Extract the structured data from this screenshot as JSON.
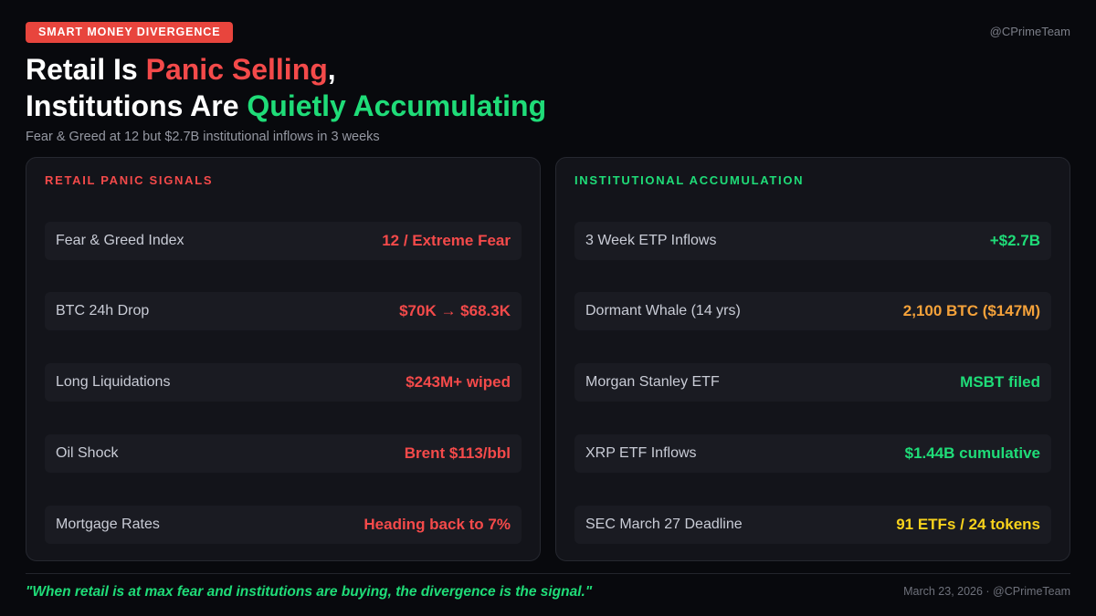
{
  "badge": "SMART MONEY DIVERGENCE",
  "handle": "@CPrimeTeam",
  "title": {
    "line1_pre": "Retail Is ",
    "line1_highlight": "Panic Selling",
    "line1_post": ",",
    "line2_pre": "Institutions Are ",
    "line2_highlight": "Quietly Accumulating"
  },
  "subtitle": "Fear & Greed at 12 but $2.7B institutional inflows in 3 weeks",
  "retail": {
    "title": "RETAIL PANIC SIGNALS",
    "accent": "#f44a4a",
    "rows": [
      {
        "label": "Fear & Greed Index",
        "value": "12 / Extreme Fear",
        "color": "#f44a4a"
      },
      {
        "label": "BTC 24h Drop",
        "value": "$70K → $68.3K",
        "color": "#f44a4a"
      },
      {
        "label": "Long Liquidations",
        "value": "$243M+ wiped",
        "color": "#f44a4a"
      },
      {
        "label": "Oil Shock",
        "value": "Brent $113/bbl",
        "color": "#f44a4a"
      },
      {
        "label": "Mortgage Rates",
        "value": "Heading back to 7%",
        "color": "#f44a4a"
      }
    ]
  },
  "institutional": {
    "title": "INSTITUTIONAL ACCUMULATION",
    "accent": "#1fdc78",
    "rows": [
      {
        "label": "3 Week ETP Inflows",
        "value": "+$2.7B",
        "color": "#1fdc78"
      },
      {
        "label": "Dormant Whale (14 yrs)",
        "value": "2,100 BTC ($147M)",
        "color": "#f5a23a"
      },
      {
        "label": "Morgan Stanley ETF",
        "value": "MSBT filed",
        "color": "#1fdc78"
      },
      {
        "label": "XRP ETF Inflows",
        "value": "$1.44B cumulative",
        "color": "#1fdc78"
      },
      {
        "label": "SEC March 27 Deadline",
        "value": "91 ETFs / 24 tokens",
        "color": "#f8d21c"
      }
    ]
  },
  "footer": {
    "quote": "\"When retail is at max fear and institutions are buying, the divergence is the signal.\"",
    "meta": "March 23, 2026 · @CPrimeTeam"
  }
}
